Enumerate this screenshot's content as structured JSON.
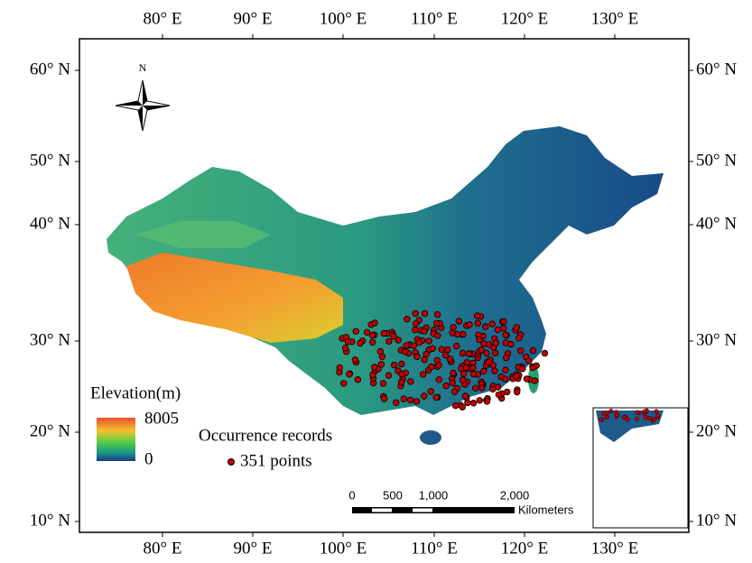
{
  "map": {
    "longitude_labels": [
      "80° E",
      "90° E",
      "100° E",
      "110° E",
      "120° E",
      "130° E"
    ],
    "latitude_labels": [
      "60° N",
      "50° N",
      "40° N",
      "30° N",
      "20° N",
      "10° N"
    ],
    "north": "N",
    "legend": {
      "elevation_title": "Elevation(m)",
      "elevation_max": "8005",
      "elevation_min": "0",
      "occurrence_title": "Occurrence records",
      "occurrence_label": "351 points"
    },
    "scale_bar": {
      "labels": [
        "0",
        "500",
        "1,000",
        "2,000"
      ],
      "unit": "Kilometers"
    }
  }
}
